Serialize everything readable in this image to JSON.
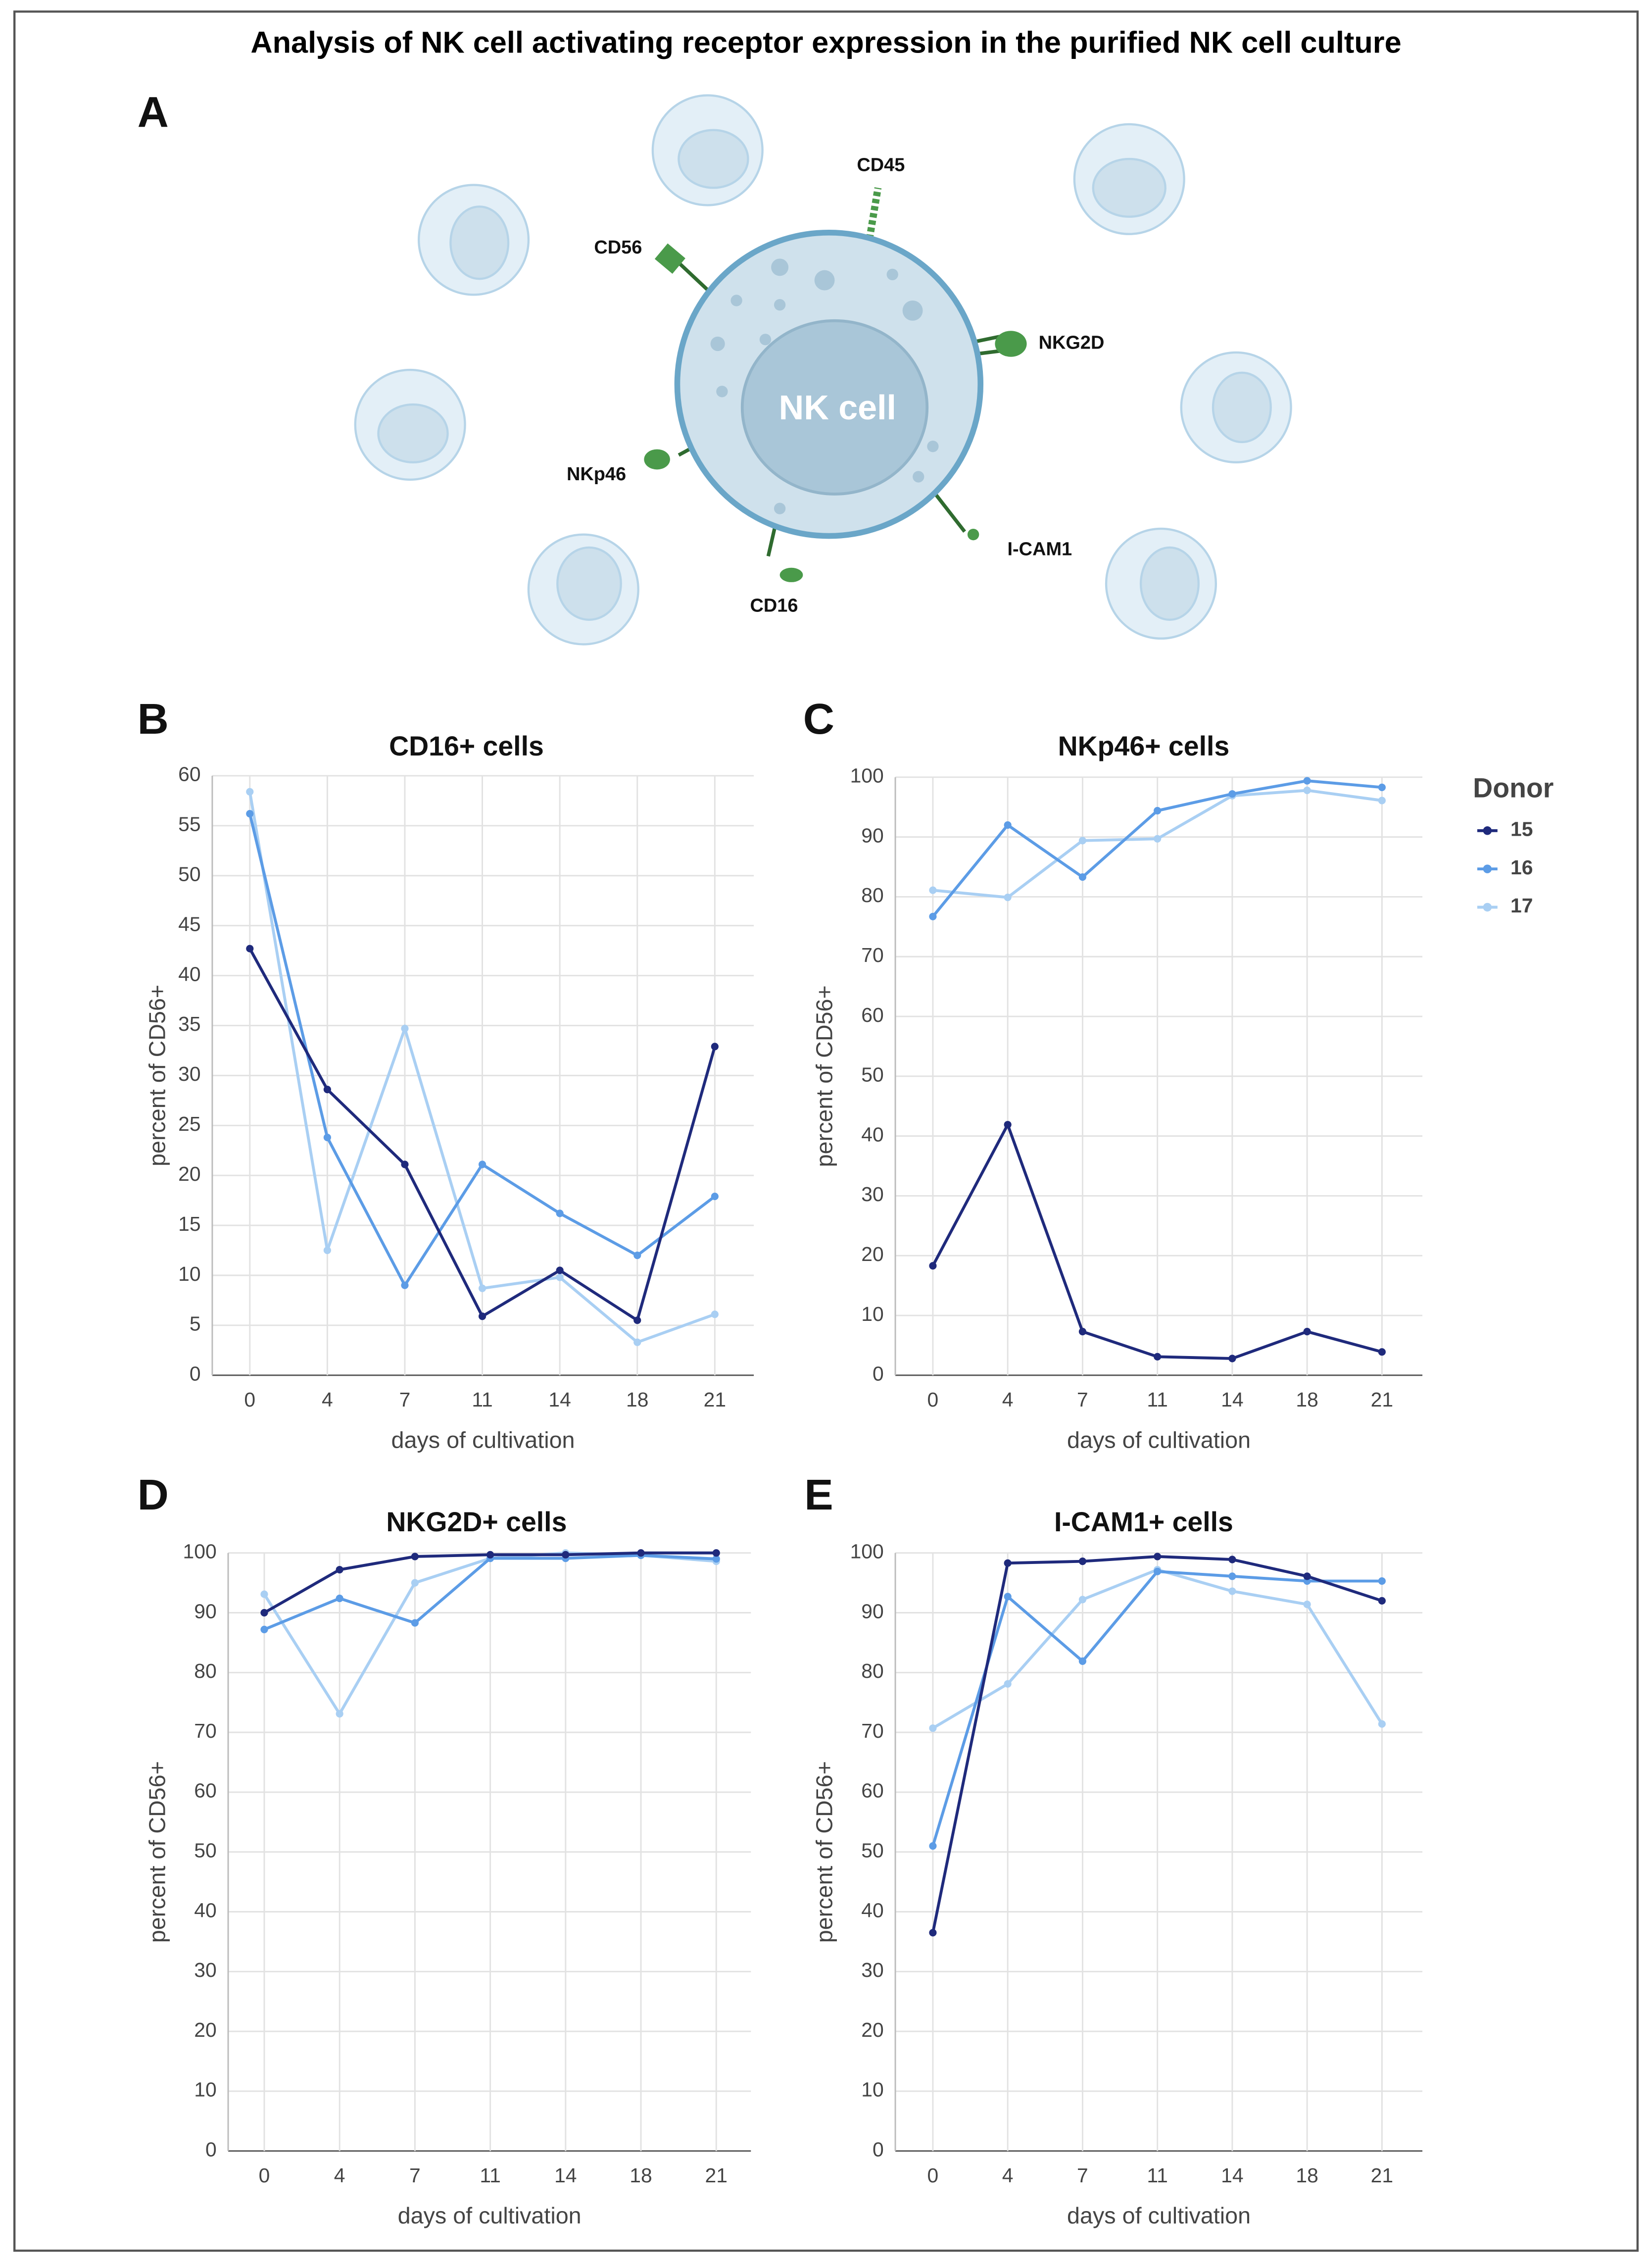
{
  "title": "Analysis of NK cell activating receptor expression in the purified NK cell culture",
  "diagram": {
    "panel": "A",
    "cell_label": "NK cell",
    "receptors": [
      "CD45",
      "CD56",
      "NKG2D",
      "NKp46",
      "I-CAM1",
      "CD16"
    ]
  },
  "chart_data": [
    {
      "type": "line",
      "panel": "B",
      "title": "CD16+ cells",
      "x_label": "days of cultivation",
      "y_label": "percent of CD56+",
      "categories": [
        "0",
        "4",
        "7",
        "11",
        "14",
        "18",
        "21"
      ],
      "ylim": [
        0,
        60
      ],
      "yticks": [
        0,
        5,
        10,
        15,
        20,
        25,
        30,
        35,
        40,
        45,
        50,
        55,
        60
      ],
      "grid": true,
      "series": [
        {
          "color": "#1f2a7c",
          "values": [
            42.7,
            28.6,
            21.1,
            5.9,
            10.5,
            5.5,
            32.9
          ]
        },
        {
          "color": "#5c9ce6",
          "values": [
            56.2,
            23.8,
            9.0,
            21.1,
            16.2,
            12.0,
            17.9
          ]
        },
        {
          "color": "#a9cff3",
          "values": [
            58.4,
            12.5,
            34.7,
            8.7,
            9.8,
            3.3,
            6.1
          ]
        }
      ]
    },
    {
      "type": "line",
      "panel": "C",
      "title": "NKp46+ cells",
      "x_label": "days of cultivation",
      "y_label": "percent of CD56+",
      "categories": [
        "0",
        "4",
        "7",
        "11",
        "14",
        "18",
        "21"
      ],
      "ylim": [
        0,
        100
      ],
      "yticks": [
        0,
        10,
        20,
        30,
        40,
        50,
        60,
        70,
        80,
        90,
        100
      ],
      "grid": true,
      "legend_title": "Donor",
      "legend": "right",
      "series": [
        {
          "name": "15",
          "color": "#1f2a7c",
          "values": [
            18.3,
            41.9,
            7.3,
            3.1,
            2.8,
            7.3,
            3.9
          ]
        },
        {
          "name": "16",
          "color": "#5c9ce6",
          "values": [
            76.7,
            92.0,
            83.3,
            94.4,
            97.2,
            99.4,
            98.3
          ]
        },
        {
          "name": "17",
          "color": "#a9cff3",
          "values": [
            81.1,
            79.9,
            89.4,
            89.7,
            96.9,
            97.8,
            96.1
          ]
        }
      ]
    },
    {
      "type": "line",
      "panel": "D",
      "title": "NKG2D+ cells",
      "x_label": "days of cultivation",
      "y_label": "percent of CD56+",
      "categories": [
        "0",
        "4",
        "7",
        "11",
        "14",
        "18",
        "21"
      ],
      "ylim": [
        0,
        100
      ],
      "yticks": [
        0,
        10,
        20,
        30,
        40,
        50,
        60,
        70,
        80,
        90,
        100
      ],
      "grid": true,
      "series": [
        {
          "color": "#1f2a7c",
          "values": [
            90.0,
            97.2,
            99.4,
            99.7,
            99.7,
            100,
            100
          ]
        },
        {
          "color": "#5c9ce6",
          "values": [
            87.2,
            92.4,
            88.3,
            99.1,
            99.1,
            99.6,
            99.0
          ]
        },
        {
          "color": "#a9cff3",
          "values": [
            93.1,
            73.1,
            95.0,
            99.1,
            100,
            99.6,
            98.6
          ]
        }
      ]
    },
    {
      "type": "line",
      "panel": "E",
      "title": "I-CAM1+ cells",
      "x_label": "days of cultivation",
      "y_label": "percent of CD56+",
      "categories": [
        "0",
        "4",
        "7",
        "11",
        "14",
        "18",
        "21"
      ],
      "ylim": [
        0,
        100
      ],
      "yticks": [
        0,
        10,
        20,
        30,
        40,
        50,
        60,
        70,
        80,
        90,
        100
      ],
      "grid": true,
      "series": [
        {
          "color": "#1f2a7c",
          "values": [
            36.5,
            98.3,
            98.6,
            99.4,
            98.9,
            96.1,
            92.0
          ]
        },
        {
          "color": "#5c9ce6",
          "values": [
            51.0,
            92.7,
            81.9,
            96.9,
            96.1,
            95.3,
            95.3
          ]
        },
        {
          "color": "#a9cff3",
          "values": [
            70.7,
            78.1,
            92.2,
            97.2,
            93.6,
            91.4,
            71.4
          ]
        }
      ]
    }
  ]
}
